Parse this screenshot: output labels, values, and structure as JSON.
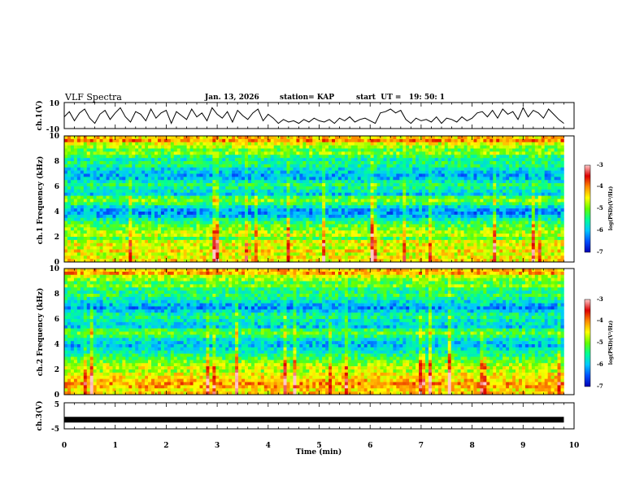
{
  "header": {
    "title": "VLF Spectra",
    "date": "Jan. 13, 2026",
    "station": "station= KAP",
    "start": "start  UT =   19: 50: 1"
  },
  "colors": {
    "background": "#ffffff",
    "axis": "#000000",
    "colormap": [
      "#0000b4",
      "#0050ff",
      "#00c8ff",
      "#00ff96",
      "#64ff00",
      "#ffff00",
      "#ff8c00",
      "#dc0000",
      "#ffc8c8"
    ]
  },
  "chart_data": [
    {
      "type": "line",
      "id": "ch1",
      "ylabel": "ch.1(V)",
      "ylim": [
        -10,
        10
      ],
      "yticks": [
        "10",
        "-10"
      ],
      "xlim": [
        0,
        10
      ],
      "series": [
        {
          "name": "ch.1",
          "x": [
            0,
            0.1,
            0.2,
            0.3,
            0.4,
            0.5,
            0.6,
            0.7,
            0.8,
            0.9,
            1.0,
            1.1,
            1.2,
            1.3,
            1.4,
            1.5,
            1.6,
            1.7,
            1.8,
            1.9,
            2.0,
            2.1,
            2.2,
            2.3,
            2.4,
            2.5,
            2.6,
            2.7,
            2.8,
            2.9,
            3.0,
            3.1,
            3.2,
            3.3,
            3.4,
            3.5,
            3.6,
            3.7,
            3.8,
            3.9,
            4.0,
            4.1,
            4.2,
            4.3,
            4.4,
            4.5,
            4.6,
            4.7,
            4.8,
            4.9,
            5.0,
            5.1,
            5.2,
            5.3,
            5.4,
            5.5,
            5.6,
            5.7,
            5.8,
            5.9,
            6.0,
            6.1,
            6.2,
            6.3,
            6.4,
            6.5,
            6.6,
            6.7,
            6.8,
            6.9,
            7.0,
            7.1,
            7.2,
            7.3,
            7.4,
            7.5,
            7.6,
            7.7,
            7.8,
            7.9,
            8.0,
            8.1,
            8.2,
            8.3,
            8.4,
            8.5,
            8.6,
            8.7,
            8.8,
            8.9,
            9.0,
            9.1,
            9.2,
            9.3,
            9.4,
            9.5,
            9.6,
            9.7,
            9.8
          ],
          "values": [
            -1,
            3,
            -4,
            2,
            5,
            -2,
            -6,
            1,
            4,
            -3,
            2,
            6,
            -1,
            -5,
            3,
            1,
            -4,
            5,
            -2,
            2,
            4,
            -6,
            3,
            0,
            -3,
            5,
            -1,
            2,
            -4,
            6,
            1,
            -2,
            3,
            -5,
            4,
            0,
            -3,
            2,
            5,
            -4,
            1,
            -2,
            -6,
            -3,
            -5,
            -4,
            -6,
            -3,
            -5,
            -2,
            -4,
            -5,
            -3,
            -6,
            -2,
            -4,
            -1,
            -5,
            -3,
            -2,
            -4,
            -6,
            2,
            3,
            5,
            2,
            4,
            -3,
            -6,
            -2,
            -4,
            -3,
            -5,
            -1,
            -6,
            -2,
            -3,
            -5,
            -1,
            -4,
            -2,
            2,
            3,
            -1,
            4,
            -2,
            5,
            1,
            3,
            -3,
            6,
            -1,
            4,
            2,
            -2,
            5,
            1,
            -3,
            -6
          ]
        }
      ]
    },
    {
      "type": "heatmap",
      "id": "ch1-spec",
      "ylabel": "ch.1 Frequency (kHz)",
      "ylim": [
        0,
        10
      ],
      "yticks": [
        "0",
        "2",
        "4",
        "6",
        "8",
        "10"
      ],
      "xlim": [
        0,
        10
      ],
      "colorbar": {
        "label": "log(PSD)(V²/Hz)",
        "range": [
          -7,
          -3
        ],
        "ticks": [
          "-3",
          "-4",
          "-5",
          "-6",
          "-7"
        ]
      },
      "band_levels_log_psd": [
        -4.3,
        -4.0,
        -4.6,
        -4.8,
        -5.1,
        -4.9,
        -5.3,
        -5.6,
        -5.4,
        -5.5,
        -5.8,
        -5.9,
        -6.1,
        -6.0,
        -5.7,
        -5.4,
        -5.6,
        -5.7,
        -5.9,
        -5.2,
        -5.0,
        -5.3,
        -5.8,
        -6.1,
        -6.2,
        -6.0,
        -5.6,
        -5.3,
        -5.1,
        -5.0,
        -4.8,
        -4.7,
        -5.2,
        -4.6,
        -4.5,
        -4.7,
        -4.4,
        -4.6,
        -4.5,
        -4.4
      ]
    },
    {
      "type": "heatmap",
      "id": "ch2-spec",
      "ylabel": "ch.2 Frequency (kHz)",
      "ylim": [
        0,
        10
      ],
      "yticks": [
        "0",
        "2",
        "4",
        "6",
        "8",
        "10"
      ],
      "xlim": [
        0,
        10
      ],
      "colorbar": {
        "label": "log(PSD)(V²/Hz)",
        "range": [
          -7,
          -3
        ],
        "ticks": [
          "-3",
          "-4",
          "-5",
          "-6",
          "-7"
        ]
      },
      "band_levels_log_psd": [
        -4.2,
        -4.1,
        -4.7,
        -4.9,
        -5.2,
        -5.0,
        -5.4,
        -5.5,
        -5.3,
        -5.6,
        -5.8,
        -6.0,
        -6.2,
        -5.9,
        -5.6,
        -5.5,
        -5.7,
        -5.8,
        -5.9,
        -5.3,
        -5.1,
        -5.4,
        -5.7,
        -5.9,
        -6.0,
        -5.8,
        -5.6,
        -5.4,
        -5.2,
        -5.0,
        -4.8,
        -4.6,
        -4.8,
        -4.5,
        -4.4,
        -4.3,
        -4.1,
        -4.2,
        -4.4,
        -4.3
      ]
    },
    {
      "type": "line",
      "id": "ch3",
      "ylabel": "ch.3(V)",
      "ylim": [
        -5,
        5
      ],
      "yticks": [
        "5",
        "-5"
      ],
      "xlim": [
        0,
        10
      ],
      "xlabel": "Time  (min)",
      "xticks": [
        "0",
        "1",
        "2",
        "3",
        "4",
        "5",
        "6",
        "7",
        "8",
        "9",
        "10"
      ],
      "series": [
        {
          "name": "ch.3",
          "x": [
            0,
            9.8
          ],
          "values": [
            -1.5,
            -1.5
          ]
        }
      ]
    }
  ]
}
